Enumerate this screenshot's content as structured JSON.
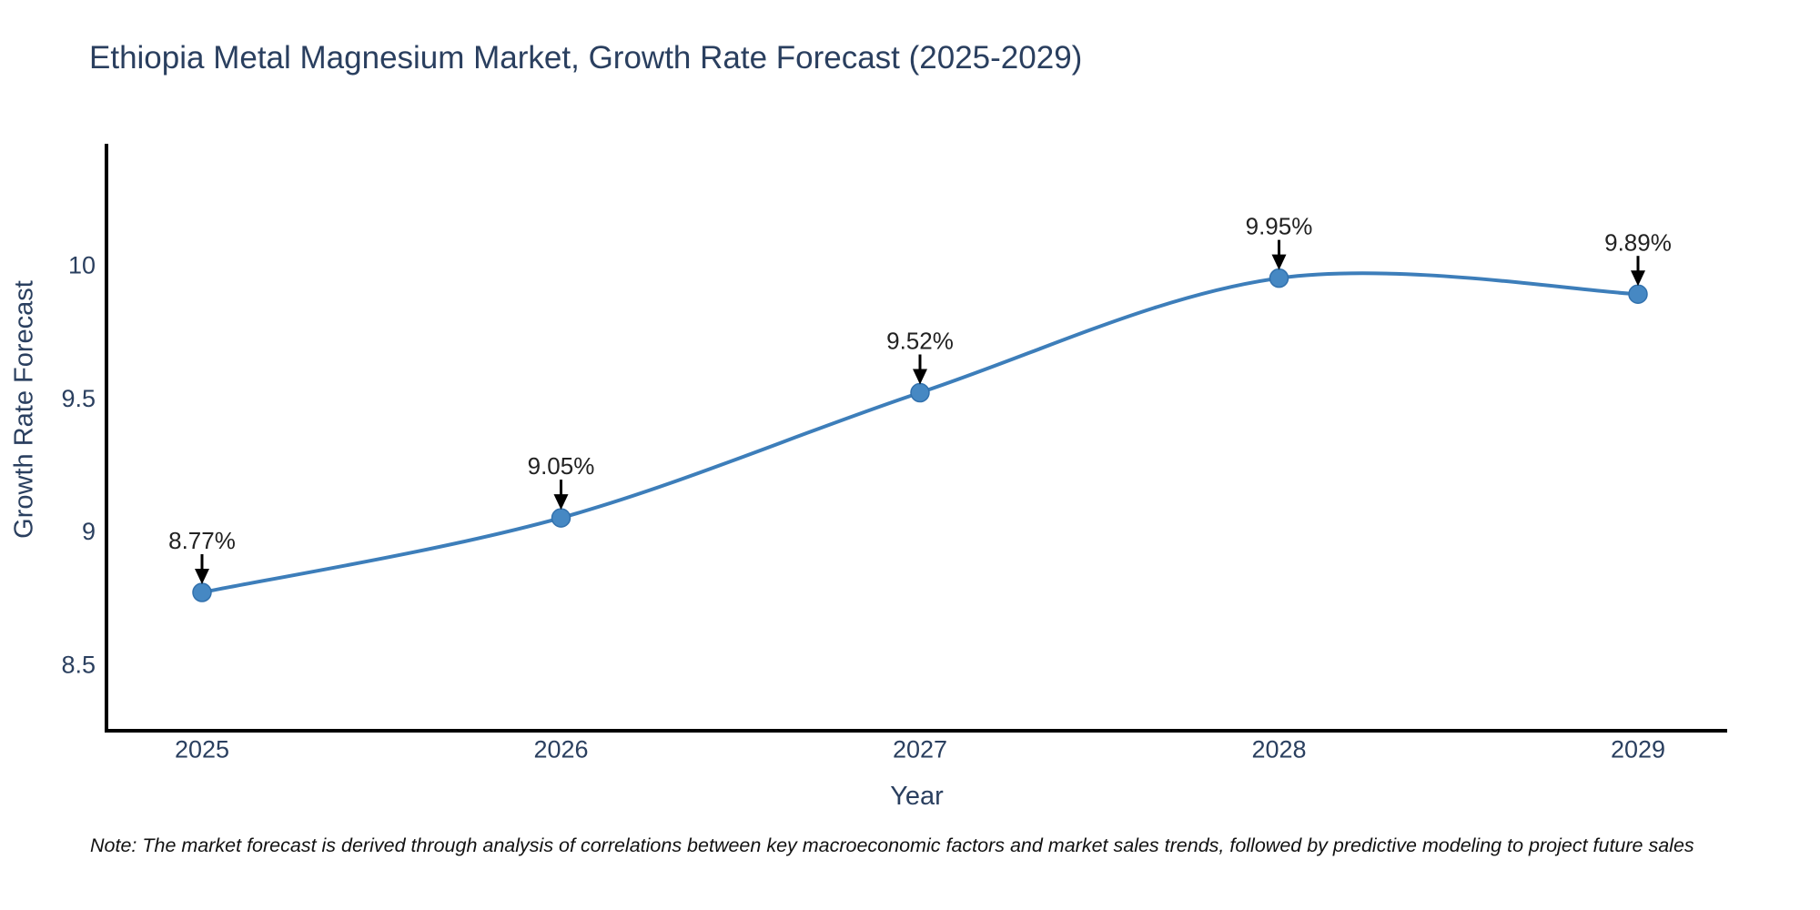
{
  "title": "Ethiopia Metal Magnesium Market, Growth Rate Forecast (2025-2029)",
  "note": "Note: The market forecast is derived through analysis of correlations between key macroeconomic factors and market sales trends, followed by predictive modeling to project future sales",
  "chart_data": {
    "type": "line",
    "title": "Ethiopia Metal Magnesium Market, Growth Rate Forecast (2025-2029)",
    "categories": [
      "2025",
      "2026",
      "2027",
      "2028",
      "2029"
    ],
    "series": [
      {
        "name": "Growth Rate Forecast",
        "values": [
          8.77,
          9.05,
          9.52,
          9.95,
          9.89
        ]
      }
    ],
    "point_labels": [
      "8.77%",
      "9.05%",
      "9.52%",
      "9.95%",
      "9.89%"
    ],
    "xlabel": "Year",
    "ylabel": "Growth Rate Forecast",
    "yticks": [
      10,
      9.5,
      9,
      8.5
    ],
    "ytick_labels": [
      "10",
      "9.5",
      "9",
      "8.5"
    ],
    "ylim": [
      8.27,
      10.42
    ],
    "grid": false,
    "legend": "none",
    "line_shape": "spline",
    "marker": "circle",
    "annotation_arrow": "down-black",
    "colors": {
      "line": "#3d7eba",
      "marker_fill": "#4688c3",
      "marker_edge": "#3271ad",
      "axis": "#000000",
      "tick_text": "#2a3f5f",
      "annotation_text": "#222222",
      "arrow": "#000000"
    }
  }
}
